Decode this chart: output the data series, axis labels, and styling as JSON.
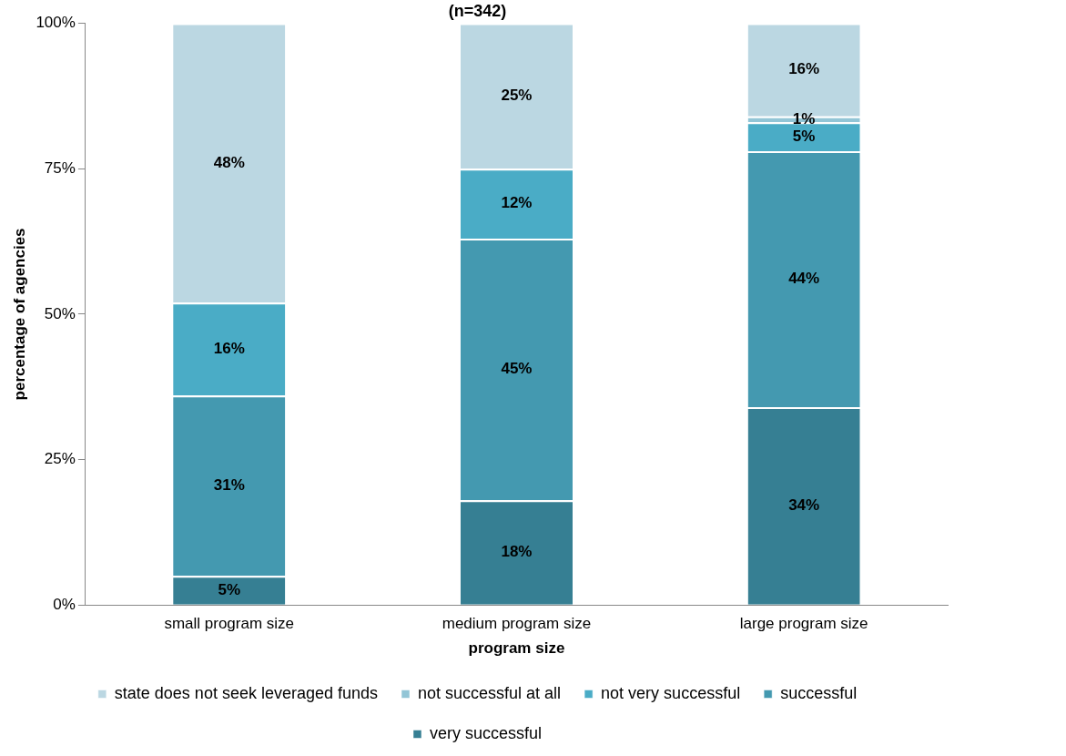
{
  "chart_data": {
    "type": "bar",
    "title": "(n=342)",
    "xlabel": "program size",
    "ylabel": "percentage of agencies",
    "categories": [
      "small program size",
      "medium program size",
      "large program size"
    ],
    "stacked": true,
    "legend": "bottom",
    "grid": false,
    "ylim": [
      0,
      100
    ],
    "yticks": [
      {
        "value": 0,
        "label": "0%"
      },
      {
        "value": 25,
        "label": "25%"
      },
      {
        "value": 50,
        "label": "50%"
      },
      {
        "value": 75,
        "label": "75%"
      },
      {
        "value": 100,
        "label": "100%"
      }
    ],
    "series": [
      {
        "name": "very successful",
        "color": "#367f93",
        "values": [
          5,
          18,
          34
        ],
        "value_labels": [
          "5%",
          "18%",
          "34%"
        ]
      },
      {
        "name": "successful",
        "color": "#4499b0",
        "values": [
          31,
          45,
          44
        ],
        "value_labels": [
          "31%",
          "45%",
          "44%"
        ]
      },
      {
        "name": "not very successful",
        "color": "#4aacc6",
        "values": [
          16,
          12,
          5
        ],
        "value_labels": [
          "16%",
          "12%",
          "5%"
        ]
      },
      {
        "name": "not successful at all",
        "color": "#92c5d6",
        "values": [
          0,
          0,
          1
        ],
        "value_labels": [
          null,
          null,
          "1%"
        ]
      },
      {
        "name": "state does not seek leveraged funds",
        "color": "#bbd7e2",
        "values": [
          48,
          25,
          16
        ],
        "value_labels": [
          "48%",
          "25%",
          "16%"
        ]
      }
    ]
  }
}
